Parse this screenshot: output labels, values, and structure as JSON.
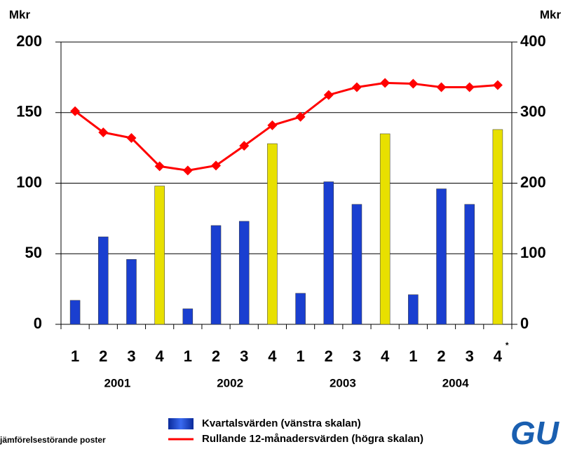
{
  "chart_data": {
    "type": "bar_line",
    "y_label": "Mkr",
    "y2_label": "Mkr",
    "categories": [
      "1",
      "2",
      "3",
      "4",
      "1",
      "2",
      "3",
      "4",
      "1",
      "2",
      "3",
      "4",
      "1",
      "2",
      "3",
      "4"
    ],
    "category_note": "*",
    "years": [
      "2001",
      "2002",
      "2003",
      "2004"
    ],
    "ylim": [
      0,
      200
    ],
    "yticks": [
      0,
      50,
      100,
      150,
      200
    ],
    "y2lim": [
      0,
      400
    ],
    "y2ticks": [
      0,
      100,
      200,
      300,
      400
    ],
    "grid": true,
    "series": [
      {
        "name": "Kvartalsvärden (vänstra skalan)",
        "type": "bar",
        "color": "#1a3fd0",
        "colors": [
          "#1a3fd0",
          "#1a3fd0",
          "#1a3fd0",
          "#e8e000",
          "#1a3fd0",
          "#1a3fd0",
          "#1a3fd0",
          "#e8e000",
          "#1a3fd0",
          "#1a3fd0",
          "#1a3fd0",
          "#e8e000",
          "#1a3fd0",
          "#1a3fd0",
          "#1a3fd0",
          "#e8e000"
        ],
        "values": [
          17,
          62,
          46,
          98,
          11,
          70,
          73,
          128,
          22,
          101,
          85,
          135,
          21,
          96,
          85,
          138
        ]
      },
      {
        "name": "Rullande 12-månadersvärden (högra skalan)",
        "type": "line",
        "axis": "y2",
        "color": "#ff0000",
        "values": [
          302,
          272,
          264,
          224,
          218,
          225,
          253,
          282,
          294,
          325,
          336,
          342,
          341,
          336,
          336,
          339
        ]
      }
    ],
    "footnote": "jämförelsestörande poster",
    "logo": "GU"
  }
}
